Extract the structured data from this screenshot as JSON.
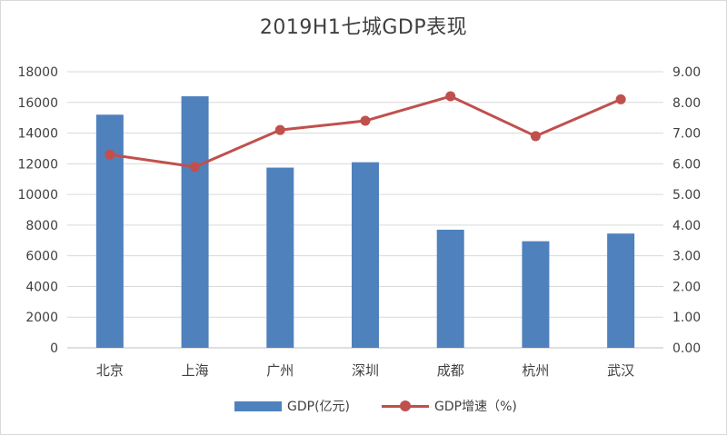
{
  "chart_data": {
    "type": "bar+line",
    "title": "2019H1七城GDP表现",
    "categories": [
      "北京",
      "上海",
      "广州",
      "深圳",
      "成都",
      "杭州",
      "武汉"
    ],
    "series": [
      {
        "name": "GDP(亿元)",
        "type": "bar",
        "axis": "left",
        "color": "#4f81bd",
        "values": [
          15200,
          16400,
          11750,
          12100,
          7700,
          6950,
          7450
        ]
      },
      {
        "name": "GDP增速（%)",
        "type": "line",
        "axis": "right",
        "color": "#c0504d",
        "values": [
          6.3,
          5.9,
          7.1,
          7.4,
          8.2,
          6.9,
          8.1
        ]
      }
    ],
    "y_left": {
      "lim": [
        0,
        18000
      ],
      "ticks": [
        "0",
        "2000",
        "4000",
        "6000",
        "8000",
        "10000",
        "12000",
        "14000",
        "16000",
        "18000"
      ]
    },
    "y_right": {
      "lim": [
        0,
        9
      ],
      "ticks": [
        "0.00",
        "1.00",
        "2.00",
        "3.00",
        "4.00",
        "5.00",
        "6.00",
        "7.00",
        "8.00",
        "9.00"
      ]
    },
    "grid": true,
    "legend_position": "bottom"
  }
}
